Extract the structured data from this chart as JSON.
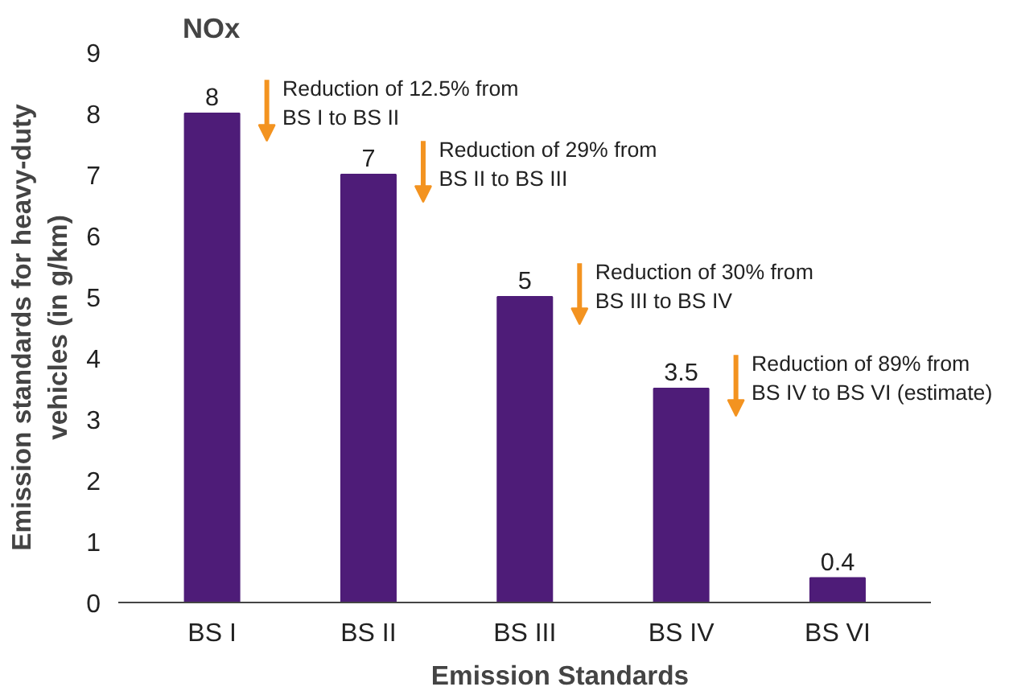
{
  "chart_data": {
    "type": "bar",
    "title": "NOx",
    "xlabel": "Emission Standards",
    "ylabel": "Emission standards for heavy-duty\nvehicles (in g/km)",
    "categories": [
      "BS I",
      "BS II",
      "BS III",
      "BS IV",
      "BS VI"
    ],
    "values": [
      8,
      7,
      5,
      3.5,
      0.4
    ],
    "color": "#4e1c78",
    "data_labels": true,
    "ylim": [
      0,
      9
    ],
    "yticks": [
      0,
      1,
      2,
      3,
      4,
      5,
      6,
      7,
      8,
      9
    ],
    "grid": false,
    "annotations": [
      "Reduction of 12.5% from\nBS I to BS II",
      "Reduction of 29% from\nBS II to BS III",
      "Reduction of 30% from\nBS III to BS IV",
      "Reduction of 89% from\nBS IV to BS VI (estimate)"
    ]
  }
}
